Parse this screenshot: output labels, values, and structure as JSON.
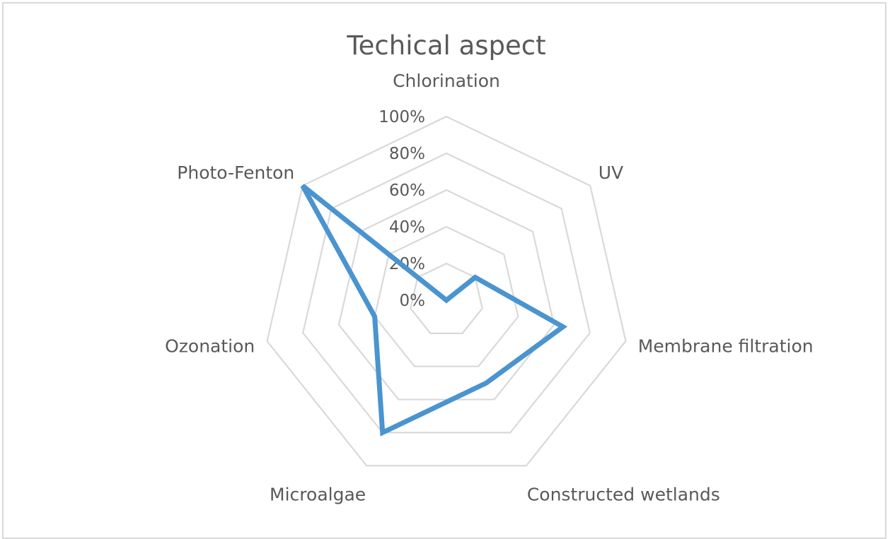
{
  "chart_data": {
    "type": "radar",
    "title": "Techical aspect",
    "categories": [
      "Chlorination",
      "UV",
      "Membrane filtration",
      "Constructed wetlands",
      "Microalgae",
      "Ozonation",
      "Photo-Fenton"
    ],
    "series": [
      {
        "values": [
          0,
          20,
          65,
          50,
          80,
          40,
          100
        ]
      }
    ],
    "axis_ticks": [
      "0%",
      "20%",
      "40%",
      "60%",
      "80%",
      "100%"
    ],
    "ylim": [
      0,
      100
    ],
    "grid": true,
    "legend": "none",
    "colors": {
      "series": "#4a94d0",
      "grid": "#d9d9d9",
      "text": "#595959",
      "border": "#d9d9d9"
    }
  }
}
